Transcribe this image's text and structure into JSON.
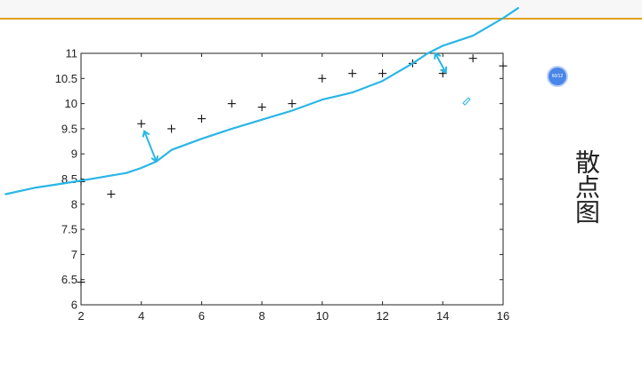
{
  "slide": {
    "title": "散点图",
    "page_indicator": "60/12",
    "accent_color": "#e0a21a"
  },
  "chart_data": {
    "type": "scatter",
    "marker": "plus",
    "xlim": [
      2,
      16
    ],
    "ylim": [
      6,
      11
    ],
    "x_ticks": [
      2,
      4,
      6,
      8,
      10,
      12,
      14,
      16
    ],
    "y_ticks": [
      6,
      6.5,
      7,
      7.5,
      8,
      8.5,
      9,
      9.5,
      10,
      10.5,
      11
    ],
    "x_tick_labels": [
      "2",
      "4",
      "6",
      "8",
      "10",
      "12",
      "14",
      "16"
    ],
    "y_tick_labels": [
      "6",
      "6.5",
      "7",
      "7.5",
      "8",
      "8.5",
      "9",
      "9.5",
      "10",
      "10.5",
      "11"
    ],
    "grid": false,
    "x": [
      2,
      2,
      3,
      4,
      5,
      6,
      7,
      8,
      9,
      10,
      11,
      12,
      13,
      14,
      15,
      16
    ],
    "y": [
      6.45,
      8.45,
      8.2,
      9.6,
      9.5,
      9.7,
      10.0,
      9.93,
      10.0,
      10.5,
      10.6,
      10.6,
      10.8,
      10.6,
      10.9,
      10.75
    ],
    "annotation": {
      "color": "#29b6e6",
      "fit_curve": {
        "x": [
          -0.5,
          0.5,
          1.5,
          2.5,
          3.5,
          4.0,
          4.5,
          5.0,
          6.0,
          7.0,
          8.0,
          9.0,
          10.0,
          11.0,
          12.0,
          13.0,
          13.5,
          14.0,
          15.0,
          16.0,
          16.5
        ],
        "y": [
          8.2,
          8.33,
          8.42,
          8.52,
          8.62,
          8.72,
          8.85,
          9.08,
          9.3,
          9.5,
          9.68,
          9.86,
          10.08,
          10.22,
          10.45,
          10.8,
          11.0,
          11.15,
          11.35,
          11.7,
          11.9
        ]
      },
      "residual_arrows": [
        {
          "x": [
            4.1,
            4.5
          ],
          "y": [
            9.45,
            8.85
          ]
        },
        {
          "x": [
            13.75,
            14.1
          ],
          "y": [
            11.0,
            10.62
          ]
        }
      ]
    }
  }
}
